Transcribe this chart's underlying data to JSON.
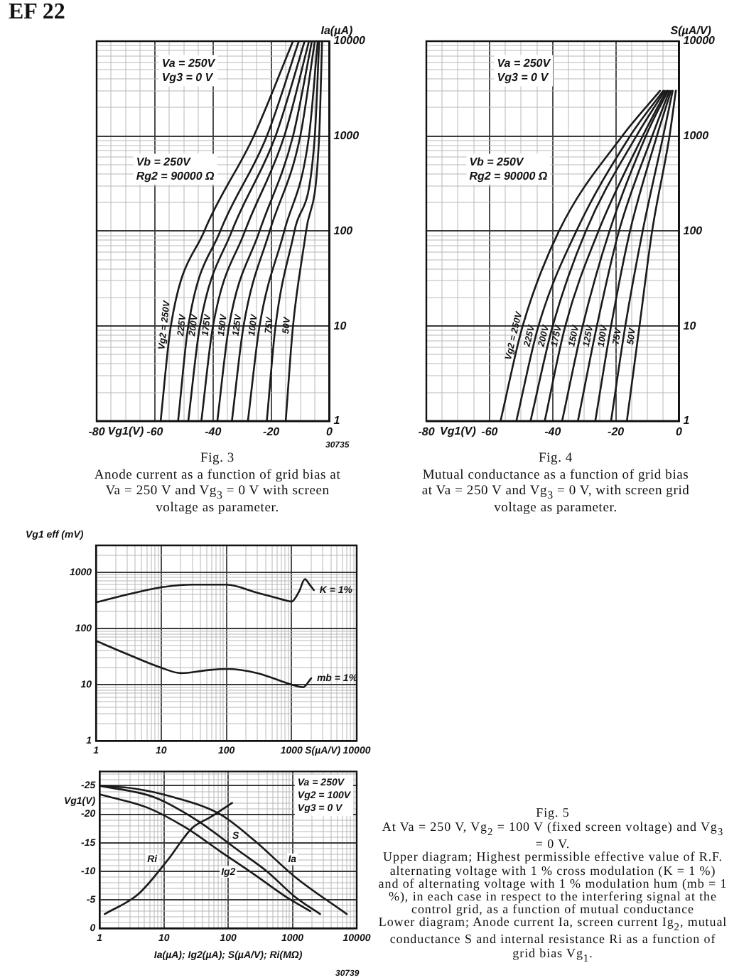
{
  "chart_data": [
    {
      "type": "line",
      "title": "Fig. 3",
      "subtitle": "Anode current as a function of grid bias at Va = 250 V and Vg$_{3}$ = 0 V with screen voltage as parameter.",
      "xlabel": "Vg1(V)",
      "ylabel": "Ia(µA)",
      "annotations": [
        "EF 22",
        "Va = 250V\nVg3 = 0 V",
        "Vb = 250V\nRg2 = 90000 Ω",
        "30735"
      ],
      "log": "y",
      "grid": true,
      "xlim": [
        -80,
        0
      ],
      "ylim": [
        1,
        10000
      ],
      "xticks": [
        -80,
        {
          "value": -75,
          "label": null
        },
        {
          "value": -70,
          "label": null
        },
        {
          "value": -65,
          "label": null
        },
        -60,
        {
          "value": -55,
          "label": null
        },
        {
          "value": -50,
          "label": null
        },
        {
          "value": -45,
          "label": null
        },
        -40,
        {
          "value": -35,
          "label": null
        },
        {
          "value": -30,
          "label": null
        },
        {
          "value": -25,
          "label": null
        },
        -20,
        {
          "value": -15,
          "label": null
        },
        {
          "value": -10,
          "label": null
        },
        {
          "value": -5,
          "label": null
        },
        0
      ],
      "yticks": [
        1,
        {
          "value": 2,
          "label": null
        },
        {
          "value": 3,
          "label": null
        },
        {
          "value": 4,
          "label": null
        },
        {
          "value": 5,
          "label": null
        },
        {
          "value": 6,
          "label": null
        },
        {
          "value": 7,
          "label": null
        },
        {
          "value": 8,
          "label": null
        },
        {
          "value": 9,
          "label": null
        },
        10,
        {
          "value": 20,
          "label": null
        },
        {
          "value": 30,
          "label": null
        },
        {
          "value": 40,
          "label": null
        },
        {
          "value": 50,
          "label": null
        },
        {
          "value": 60,
          "label": null
        },
        {
          "value": 70,
          "label": null
        },
        {
          "value": 80,
          "label": null
        },
        {
          "value": 90,
          "label": null
        },
        100,
        {
          "value": 200,
          "label": null
        },
        {
          "value": 300,
          "label": null
        },
        {
          "value": 400,
          "label": null
        },
        {
          "value": 500,
          "label": null
        },
        {
          "value": 600,
          "label": null
        },
        {
          "value": 700,
          "label": null
        },
        {
          "value": 800,
          "label": null
        },
        {
          "value": 900,
          "label": null
        },
        1000,
        {
          "value": 2000,
          "label": null
        },
        {
          "value": 3000,
          "label": null
        },
        {
          "value": 4000,
          "label": null
        },
        {
          "value": 5000,
          "label": null
        },
        {
          "value": 6000,
          "label": null
        },
        {
          "value": 7000,
          "label": null
        },
        {
          "value": 8000,
          "label": null
        },
        {
          "value": 9000,
          "label": null
        },
        10000
      ],
      "series": [
        {
          "name": "Vg2 = 250V",
          "color": "#1a1a1a",
          "x": [
            -58,
            -54.5,
            -43,
            -26,
            -12.5
          ],
          "values": [
            1,
            10,
            100,
            1000,
            10000
          ]
        },
        {
          "name": "225V",
          "color": "#1a1a1a",
          "x": [
            -52,
            -48.5,
            -37.5,
            -21.5,
            -10.5
          ],
          "values": [
            1,
            10,
            100,
            1000,
            10000
          ]
        },
        {
          "name": "200V",
          "color": "#1a1a1a",
          "x": [
            -48.5,
            -44.5,
            -33.5,
            -18.5,
            -8.5
          ],
          "values": [
            1,
            10,
            100,
            1000,
            10000
          ]
        },
        {
          "name": "175V",
          "color": "#1a1a1a",
          "x": [
            -44,
            -40,
            -29,
            -15.5,
            -7
          ],
          "values": [
            1,
            10,
            100,
            1000,
            10000
          ]
        },
        {
          "name": "150V",
          "color": "#1a1a1a",
          "x": [
            -38.5,
            -34.5,
            -24,
            -12.5,
            -6
          ],
          "values": [
            1,
            10,
            100,
            1000,
            10000
          ]
        },
        {
          "name": "125V",
          "color": "#1a1a1a",
          "x": [
            -33.5,
            -29.5,
            -20.5,
            -10,
            -5
          ],
          "values": [
            1,
            10,
            100,
            1000,
            10000
          ]
        },
        {
          "name": "100V",
          "color": "#1a1a1a",
          "x": [
            -28,
            -24,
            -15.5,
            -7,
            -4
          ],
          "values": [
            1,
            10,
            100,
            1000,
            10000
          ]
        },
        {
          "name": "75V",
          "color": "#1a1a1a",
          "x": [
            -21.5,
            -18.5,
            -12,
            -5,
            -3.5
          ],
          "values": [
            1,
            10,
            100,
            1000,
            10000
          ]
        },
        {
          "name": "50V",
          "color": "#1a1a1a",
          "x": [
            -15,
            -12.5,
            -8,
            -3.5,
            -2.5
          ],
          "values": [
            1,
            10,
            100,
            1000,
            10000
          ]
        }
      ]
    },
    {
      "type": "line",
      "title": "Fig. 4",
      "subtitle": "Mutual conductance as a function of grid bias at Va = 250 V and Vg$_{3}$ = 0 V, with screen grid voltage as parameter.",
      "xlabel": "Vg1(V)",
      "ylabel": "S(µA/V)",
      "annotations": [
        "Va = 250V\nVg3 = 0 V",
        "Vb = 250V\nRg2 = 90000 Ω"
      ],
      "log": "y",
      "grid": true,
      "xlim": [
        -80,
        0
      ],
      "ylim": [
        1,
        10000
      ],
      "xticks": [
        -80,
        {
          "value": -75,
          "label": null
        },
        {
          "value": -70,
          "label": null
        },
        {
          "value": -65,
          "label": null
        },
        -60,
        {
          "value": -55,
          "label": null
        },
        {
          "value": -50,
          "label": null
        },
        {
          "value": -45,
          "label": null
        },
        -40,
        {
          "value": -35,
          "label": null
        },
        {
          "value": -30,
          "label": null
        },
        {
          "value": -25,
          "label": null
        },
        -20,
        {
          "value": -15,
          "label": null
        },
        {
          "value": -10,
          "label": null
        },
        {
          "value": -5,
          "label": null
        },
        0
      ],
      "yticks": [
        1,
        {
          "value": 2,
          "label": null
        },
        {
          "value": 3,
          "label": null
        },
        {
          "value": 4,
          "label": null
        },
        {
          "value": 5,
          "label": null
        },
        {
          "value": 6,
          "label": null
        },
        {
          "value": 7,
          "label": null
        },
        {
          "value": 8,
          "label": null
        },
        {
          "value": 9,
          "label": null
        },
        10,
        {
          "value": 20,
          "label": null
        },
        {
          "value": 30,
          "label": null
        },
        {
          "value": 40,
          "label": null
        },
        {
          "value": 50,
          "label": null
        },
        {
          "value": 60,
          "label": null
        },
        {
          "value": 70,
          "label": null
        },
        {
          "value": 80,
          "label": null
        },
        {
          "value": 90,
          "label": null
        },
        100,
        {
          "value": 200,
          "label": null
        },
        {
          "value": 300,
          "label": null
        },
        {
          "value": 400,
          "label": null
        },
        {
          "value": 500,
          "label": null
        },
        {
          "value": 600,
          "label": null
        },
        {
          "value": 700,
          "label": null
        },
        {
          "value": 800,
          "label": null
        },
        {
          "value": 900,
          "label": null
        },
        1000,
        {
          "value": 2000,
          "label": null
        },
        {
          "value": 3000,
          "label": null
        },
        {
          "value": 4000,
          "label": null
        },
        {
          "value": 5000,
          "label": null
        },
        {
          "value": 6000,
          "label": null
        },
        {
          "value": 7000,
          "label": null
        },
        {
          "value": 8000,
          "label": null
        },
        {
          "value": 9000,
          "label": null
        },
        10000
      ],
      "series": [
        {
          "name": "Vg2 = 250V",
          "color": "#1a1a1a",
          "x": [
            -56.5,
            -49.5,
            -38,
            -18,
            -6
          ],
          "values": [
            1,
            10,
            100,
            1000,
            3000
          ]
        },
        {
          "name": "225V",
          "color": "#1a1a1a",
          "x": [
            -51.5,
            -44.5,
            -32.5,
            -15.5,
            -5
          ],
          "values": [
            1,
            10,
            100,
            1000,
            3000
          ]
        },
        {
          "name": "200V",
          "color": "#1a1a1a",
          "x": [
            -47,
            -40,
            -29.5,
            -13.5,
            -4.5
          ],
          "values": [
            1,
            10,
            100,
            1000,
            3000
          ]
        },
        {
          "name": "175V",
          "color": "#1a1a1a",
          "x": [
            -42.5,
            -36,
            -25.5,
            -11.5,
            -4
          ],
          "values": [
            1,
            10,
            100,
            1000,
            3000
          ]
        },
        {
          "name": "150V",
          "color": "#1a1a1a",
          "x": [
            -37,
            -30.5,
            -22,
            -10.5,
            -3.5
          ],
          "values": [
            1,
            10,
            100,
            1000,
            3000
          ]
        },
        {
          "name": "125V",
          "color": "#1a1a1a",
          "x": [
            -32,
            -26,
            -19,
            -8.5,
            -3
          ],
          "values": [
            1,
            10,
            100,
            1000,
            3000
          ]
        },
        {
          "name": "100V",
          "color": "#1a1a1a",
          "x": [
            -26.5,
            -21.5,
            -15.5,
            -7,
            -2.5
          ],
          "values": [
            1,
            10,
            100,
            1000,
            3000
          ]
        },
        {
          "name": "75V",
          "color": "#1a1a1a",
          "x": [
            -21.5,
            -17,
            -11.5,
            -5,
            -2
          ],
          "values": [
            1,
            10,
            100,
            1000,
            3000
          ]
        },
        {
          "name": "50V",
          "color": "#1a1a1a",
          "x": [
            -16.5,
            -12.5,
            -8.5,
            -3,
            -1
          ],
          "values": [
            1,
            10,
            100,
            1000,
            3000
          ]
        }
      ]
    },
    {
      "type": "line",
      "xlabel": "S(µA/V)",
      "ylabel": "Vg1 eff (mV)",
      "log": "xy",
      "grid": true,
      "xlim": [
        1,
        10000
      ],
      "ylim": [
        1,
        3000
      ],
      "xticks": [
        1,
        {
          "value": 2,
          "label": null
        },
        {
          "value": 3,
          "label": null
        },
        {
          "value": 4,
          "label": null
        },
        {
          "value": 5,
          "label": null
        },
        {
          "value": 6,
          "label": null
        },
        {
          "value": 7,
          "label": null
        },
        {
          "value": 8,
          "label": null
        },
        {
          "value": 9,
          "label": null
        },
        10,
        {
          "value": 20,
          "label": null
        },
        {
          "value": 30,
          "label": null
        },
        {
          "value": 40,
          "label": null
        },
        {
          "value": 50,
          "label": null
        },
        {
          "value": 60,
          "label": null
        },
        {
          "value": 70,
          "label": null
        },
        {
          "value": 80,
          "label": null
        },
        {
          "value": 90,
          "label": null
        },
        100,
        {
          "value": 200,
          "label": null
        },
        {
          "value": 300,
          "label": null
        },
        {
          "value": 400,
          "label": null
        },
        {
          "value": 500,
          "label": null
        },
        {
          "value": 600,
          "label": null
        },
        {
          "value": 700,
          "label": null
        },
        {
          "value": 800,
          "label": null
        },
        {
          "value": 900,
          "label": null
        },
        1000,
        {
          "value": 2000,
          "label": null
        },
        {
          "value": 3000,
          "label": null
        },
        {
          "value": 4000,
          "label": null
        },
        {
          "value": 5000,
          "label": null
        },
        {
          "value": 6000,
          "label": null
        },
        {
          "value": 7000,
          "label": null
        },
        {
          "value": 8000,
          "label": null
        },
        {
          "value": 9000,
          "label": null
        },
        10000
      ],
      "yticks": [
        1,
        {
          "value": 2,
          "label": null
        },
        {
          "value": 3,
          "label": null
        },
        {
          "value": 4,
          "label": null
        },
        {
          "value": 5,
          "label": null
        },
        {
          "value": 6,
          "label": null
        },
        {
          "value": 7,
          "label": null
        },
        {
          "value": 8,
          "label": null
        },
        {
          "value": 9,
          "label": null
        },
        10,
        {
          "value": 20,
          "label": null
        },
        {
          "value": 30,
          "label": null
        },
        {
          "value": 40,
          "label": null
        },
        {
          "value": 50,
          "label": null
        },
        {
          "value": 60,
          "label": null
        },
        {
          "value": 70,
          "label": null
        },
        {
          "value": 80,
          "label": null
        },
        {
          "value": 90,
          "label": null
        },
        100,
        {
          "value": 200,
          "label": null
        },
        {
          "value": 300,
          "label": null
        },
        {
          "value": 400,
          "label": null
        },
        {
          "value": 500,
          "label": null
        },
        {
          "value": 600,
          "label": null
        },
        {
          "value": 700,
          "label": null
        },
        {
          "value": 800,
          "label": null
        },
        {
          "value": 900,
          "label": null
        },
        1000,
        {
          "value": 2000,
          "label": null
        },
        {
          "value": 3000,
          "label": null
        }
      ],
      "series": [
        {
          "name": "K = 1%",
          "color": "#1a1a1a",
          "x": [
            1,
            3,
            10,
            30,
            100,
            300,
            700,
            1000,
            1300,
            1600,
            1900,
            2200
          ],
          "values": [
            290,
            400,
            540,
            600,
            600,
            430,
            330,
            300,
            450,
            750,
            600,
            480
          ]
        },
        {
          "name": "mb = 1%",
          "color": "#1a1a1a",
          "x": [
            1,
            3,
            10,
            20,
            50,
            100,
            300,
            1000,
            1500,
            2000
          ],
          "values": [
            60,
            35,
            20,
            16,
            18,
            19,
            16,
            10,
            9,
            13
          ]
        }
      ]
    },
    {
      "type": "line",
      "xlabel": "Ia(µA); Ig2(µA); S(µA/V); Ri(MΩ)",
      "ylabel": "Vg1(V)",
      "annotations": [
        "Va = 250V\nVg2 = 100V\nVg3 = 0 V",
        "30739",
        "Fig. 5",
        "At Va = 250 V, Vg$_{2}$ = 100 V (fixed screen voltage) and Vg$_{3}$ = 0 V.",
        "Upper diagram; Highest permissible effective value of R.F. alternating voltage with 1 % cross modulation (K = 1 %) and of alternating voltage with 1 % modulation hum (mb = 1 %), in each case in respect to the interfering signal at the control grid, as a function of mutual conductance",
        "Lower diagram; Anode current Ia, screen current Ig$_{2}$, mutual conductance S and internal resistance Ri as a function of grid bias Vg$_{1}$."
      ],
      "log": "x",
      "grid": true,
      "xlim": [
        1,
        10000
      ],
      "ylim": [
        0,
        -27.5
      ],
      "xticks": [
        1,
        {
          "value": 2,
          "label": null
        },
        {
          "value": 3,
          "label": null
        },
        {
          "value": 4,
          "label": null
        },
        {
          "value": 5,
          "label": null
        },
        {
          "value": 6,
          "label": null
        },
        {
          "value": 7,
          "label": null
        },
        {
          "value": 8,
          "label": null
        },
        {
          "value": 9,
          "label": null
        },
        10,
        {
          "value": 20,
          "label": null
        },
        {
          "value": 30,
          "label": null
        },
        {
          "value": 40,
          "label": null
        },
        {
          "value": 50,
          "label": null
        },
        {
          "value": 60,
          "label": null
        },
        {
          "value": 70,
          "label": null
        },
        {
          "value": 80,
          "label": null
        },
        {
          "value": 90,
          "label": null
        },
        100,
        {
          "value": 200,
          "label": null
        },
        {
          "value": 300,
          "label": null
        },
        {
          "value": 400,
          "label": null
        },
        {
          "value": 500,
          "label": null
        },
        {
          "value": 600,
          "label": null
        },
        {
          "value": 700,
          "label": null
        },
        {
          "value": 800,
          "label": null
        },
        {
          "value": 900,
          "label": null
        },
        1000,
        {
          "value": 2000,
          "label": null
        },
        {
          "value": 3000,
          "label": null
        },
        {
          "value": 4000,
          "label": null
        },
        {
          "value": 5000,
          "label": null
        },
        {
          "value": 6000,
          "label": null
        },
        {
          "value": 7000,
          "label": null
        },
        {
          "value": 8000,
          "label": null
        },
        {
          "value": 9000,
          "label": null
        },
        10000
      ],
      "yticks": [
        0,
        {
          "value": -1,
          "label": null
        },
        {
          "value": -2,
          "label": null
        },
        {
          "value": -3,
          "label": null
        },
        {
          "value": -4,
          "label": null
        },
        -5,
        {
          "value": -6,
          "label": null
        },
        {
          "value": -7,
          "label": null
        },
        {
          "value": -8,
          "label": null
        },
        {
          "value": -9,
          "label": null
        },
        -10,
        {
          "value": -11,
          "label": null
        },
        {
          "value": -12,
          "label": null
        },
        {
          "value": -13,
          "label": null
        },
        {
          "value": -14,
          "label": null
        },
        -15,
        {
          "value": -16,
          "label": null
        },
        {
          "value": -17,
          "label": null
        },
        {
          "value": -18,
          "label": null
        },
        {
          "value": -19,
          "label": null
        },
        -20,
        {
          "value": -21,
          "label": null
        },
        {
          "value": -22,
          "label": null
        },
        {
          "value": -23,
          "label": null
        },
        {
          "value": -24,
          "label": null
        },
        -25,
        {
          "value": -26,
          "label": null
        },
        {
          "value": -27,
          "label": null
        }
      ],
      "series": [
        {
          "name": "Ri",
          "color": "#1a1a1a",
          "x": [
            1.2,
            4,
            11.5,
            27,
            53,
            115
          ],
          "values": [
            -2.5,
            -6,
            -12,
            -17.5,
            -19.5,
            -22
          ]
        },
        {
          "name": "Ig2",
          "color": "#1a1a1a",
          "x": [
            1,
            6,
            23,
            75,
            250,
            800,
            1900
          ],
          "values": [
            -23.5,
            -21,
            -17.5,
            -13.5,
            -9.5,
            -5.5,
            -3
          ]
        },
        {
          "name": "S",
          "color": "#1a1a1a",
          "x": [
            1,
            7,
            32,
            150,
            400,
            1100,
            2700
          ],
          "values": [
            -25,
            -23,
            -19,
            -13.5,
            -10,
            -5.5,
            -2.5
          ]
        },
        {
          "name": "Ia",
          "color": "#1a1a1a",
          "x": [
            1,
            3.5,
            14,
            75,
            250,
            1100,
            7000
          ],
          "values": [
            -25,
            -24.5,
            -23,
            -20,
            -15.5,
            -9,
            -2.5
          ]
        }
      ]
    }
  ]
}
